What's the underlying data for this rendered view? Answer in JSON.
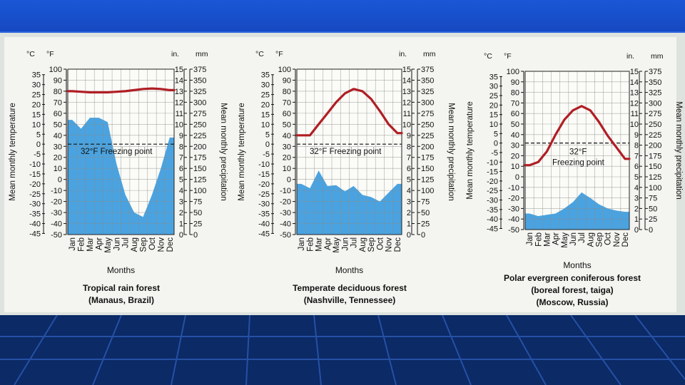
{
  "chart_data": [
    {
      "type": "line",
      "title": "Tropical rain forest",
      "subtitle": "(Manaus, Brazil)",
      "categories": [
        "Jan",
        "Feb",
        "Mar",
        "Apr",
        "May",
        "Jun",
        "Jul",
        "Aug",
        "Sep",
        "Oct",
        "Nov",
        "Dec"
      ],
      "xlabel": "Months",
      "ylabel_left": "Mean monthly temperature",
      "ylabel_right": "Mean monthly precipitation",
      "unit_c": "°C",
      "unit_f": "°F",
      "unit_in": "in.",
      "unit_mm": "mm",
      "freezing_label": "32°F Freezing point",
      "series": [
        {
          "name": "temperature_F",
          "values": [
            80,
            79.5,
            79,
            79,
            79,
            79.5,
            80,
            81,
            82,
            82.5,
            82,
            81
          ]
        },
        {
          "name": "precipitation_mm",
          "values": [
            260,
            240,
            265,
            265,
            255,
            160,
            90,
            50,
            40,
            90,
            150,
            220
          ]
        }
      ]
    },
    {
      "type": "line",
      "title": "Temperate deciduous forest",
      "subtitle": "(Nashville, Tennessee)",
      "categories": [
        "Jan",
        "Feb",
        "Mar",
        "Apr",
        "May",
        "Jun",
        "Jul",
        "Aug",
        "Sep",
        "Oct",
        "Nov",
        "Dec"
      ],
      "xlabel": "Months",
      "ylabel_left": "Mean monthly temperature",
      "ylabel_right": "Mean monthly precipitation",
      "unit_c": "°C",
      "unit_f": "°F",
      "unit_in": "in.",
      "unit_mm": "mm",
      "freezing_label": "32°F Freezing point",
      "series": [
        {
          "name": "temperature_F",
          "values": [
            40,
            40,
            50,
            60,
            70,
            78,
            82,
            80,
            73,
            62,
            50,
            42
          ]
        },
        {
          "name": "precipitation_mm",
          "values": [
            115,
            105,
            145,
            110,
            112,
            98,
            110,
            90,
            85,
            75,
            95,
            115
          ]
        }
      ]
    },
    {
      "type": "line",
      "title": "Polar evergreen coniferous forest",
      "subtitle": "(boreal forest, taiga)",
      "subtitle2": "(Moscow, Russia)",
      "categories": [
        "Jan",
        "Feb",
        "Mar",
        "Apr",
        "May",
        "Jun",
        "Jul",
        "Aug",
        "Sep",
        "Oct",
        "Nov",
        "Dec"
      ],
      "xlabel": "Months",
      "ylabel_left": "Mean monthly temperature",
      "ylabel_right": "Mean monthly precipitation",
      "unit_c": "°C",
      "unit_f": "°F",
      "unit_in": "in.",
      "unit_mm": "mm",
      "freezing_label_1": "32°F",
      "freezing_label_2": "Freezing point",
      "series": [
        {
          "name": "temperature_F",
          "values": [
            11,
            14,
            24,
            40,
            54,
            63,
            67,
            63,
            52,
            39,
            28,
            17
          ]
        },
        {
          "name": "precipitation_mm",
          "values": [
            38,
            32,
            35,
            38,
            50,
            65,
            88,
            75,
            60,
            50,
            45,
            42
          ]
        }
      ]
    }
  ],
  "axes": {
    "celsius_ticks": [
      35,
      30,
      25,
      20,
      15,
      10,
      5,
      0,
      -5,
      -10,
      -15,
      -20,
      -25,
      -30,
      -35,
      -40,
      -45
    ],
    "fahrenheit_ticks": [
      100,
      90,
      80,
      70,
      60,
      50,
      40,
      30,
      20,
      10,
      0,
      -10,
      -20,
      -30,
      -40,
      -50
    ],
    "inch_ticks": [
      15,
      14,
      13,
      12,
      11,
      10,
      9,
      8,
      7,
      6,
      5,
      4,
      3,
      2,
      1,
      0
    ],
    "mm_ticks": [
      375,
      350,
      325,
      300,
      275,
      250,
      225,
      200,
      175,
      150,
      125,
      100,
      75,
      50,
      25,
      0
    ],
    "fahrenheit_range": [
      -50,
      100
    ],
    "mm_range": [
      0,
      375
    ]
  },
  "colors": {
    "precip_fill": "#4aa3e0",
    "temp_line": "#b01e24",
    "grid": "#8a8a8a"
  }
}
